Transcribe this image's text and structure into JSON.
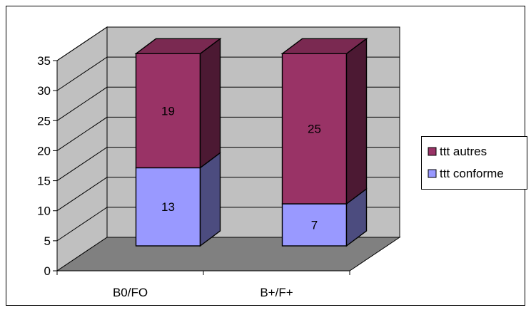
{
  "chart_data": {
    "type": "bar",
    "stacked": true,
    "three_d": true,
    "categories": [
      "B0/FO",
      "B+/F+"
    ],
    "series": [
      {
        "name": "ttt conforme",
        "values": [
          13,
          7
        ],
        "color": "#9999ff",
        "side_color": "#4c4c7f",
        "top_color": "#7a7acc"
      },
      {
        "name": "ttt autres",
        "values": [
          19,
          25
        ],
        "color": "#993366",
        "side_color": "#4c1933",
        "top_color": "#7a2951"
      }
    ],
    "ylim": [
      0,
      35
    ],
    "yticks": [
      0,
      5,
      10,
      15,
      20,
      25,
      30,
      35
    ],
    "grid": true,
    "legend_position": "right",
    "wall_color": "#c0c0c0",
    "floor_color": "#808080"
  }
}
